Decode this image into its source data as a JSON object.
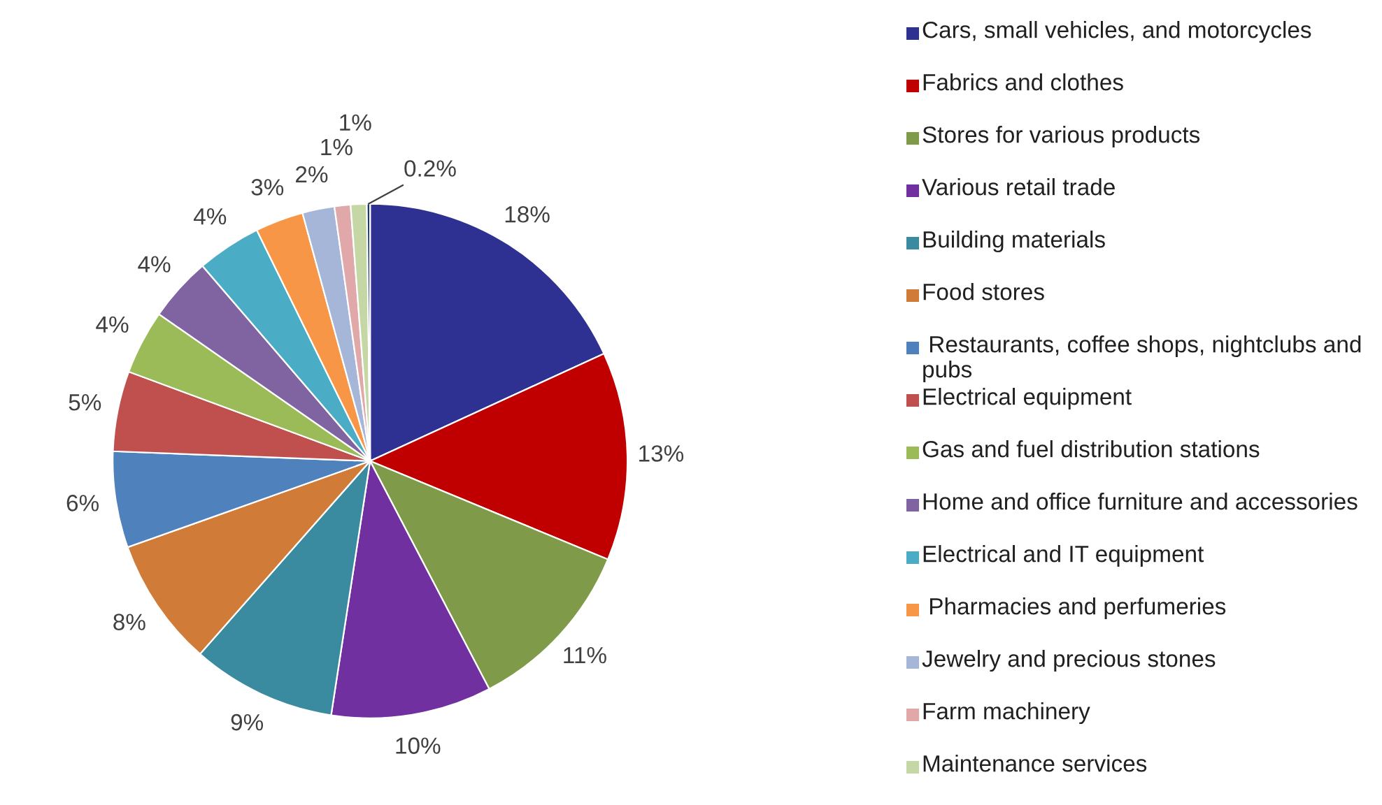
{
  "chart_data": {
    "type": "pie",
    "categories": [
      "Cars, small vehicles, and motorcycles",
      "Fabrics and clothes",
      "Stores for various products",
      "Various retail trade",
      "Building materials",
      "Food stores",
      " Restaurants, coffee shops, nightclubs and pubs",
      "Electrical equipment",
      "Gas and fuel distribution stations",
      "Home and office furniture and accessories",
      "Electrical and IT equipment",
      " Pharmacies and perfumeries",
      "Jewelry and precious stones",
      "Farm machinery",
      "Maintenance services",
      null
    ],
    "values": [
      18,
      13,
      11,
      10,
      9,
      8,
      6,
      5,
      4,
      4,
      4,
      3,
      2,
      1,
      1,
      0.2
    ],
    "value_labels": [
      "18%",
      "13%",
      "11%",
      "10%",
      "9%",
      "8%",
      "6%",
      "5%",
      "4%",
      "4%",
      "4%",
      "3%",
      "2%",
      "1%",
      "1%",
      "0.2%"
    ],
    "colors": [
      "#2e3192",
      "#c00000",
      "#7f9a48",
      "#7030a0",
      "#3a8ba0",
      "#d07b37",
      "#4f81bd",
      "#c0504d",
      "#9bbb59",
      "#8064a2",
      "#4bacc6",
      "#f79646",
      "#a6b6d8",
      "#e0a8a8",
      "#c4d7a4",
      "#1f3864"
    ],
    "legend": "right"
  }
}
